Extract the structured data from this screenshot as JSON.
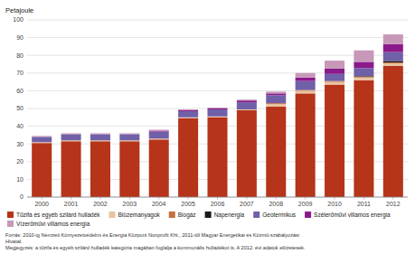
{
  "chart_data": {
    "type": "bar",
    "stacked": true,
    "grid": true,
    "legend": "bottom",
    "ylabel": "Petajoule",
    "categories": [
      "2000",
      "2001",
      "2002",
      "2003",
      "2004",
      "2005",
      "2006",
      "2007",
      "2008",
      "2009",
      "2010",
      "2011",
      "2012"
    ],
    "series": [
      {
        "name": "Tűzifa és egyéb szilárd hulladék",
        "color": "#b5341a",
        "values": [
          30.5,
          31.5,
          31.5,
          31.5,
          32.5,
          44.5,
          45.0,
          49.0,
          51.0,
          58.5,
          63.5,
          66.0,
          74.0
        ]
      },
      {
        "name": "Biüzemanyagok",
        "color": "#e8c4a0",
        "values": [
          0.5,
          0.5,
          0.5,
          0.5,
          0.5,
          0.5,
          0.5,
          0.5,
          1.5,
          1.5,
          1.5,
          1.5,
          1.5
        ]
      },
      {
        "name": "Biogáz",
        "color": "#c87040",
        "values": [
          0.0,
          0.0,
          0.0,
          0.0,
          0.0,
          0.0,
          0.0,
          0.0,
          0.5,
          0.5,
          0.5,
          0.5,
          0.5
        ]
      },
      {
        "name": "Napenergia",
        "color": "#1a1a1a",
        "values": [
          0.0,
          0.0,
          0.0,
          0.0,
          0.0,
          0.0,
          0.0,
          0.0,
          0.0,
          0.0,
          0.0,
          0.3,
          0.8
        ]
      },
      {
        "name": "Geotermikus",
        "color": "#7060a8",
        "values": [
          3.0,
          3.5,
          3.5,
          3.5,
          4.0,
          3.5,
          4.0,
          4.0,
          4.5,
          5.0,
          4.0,
          4.5,
          5.0
        ]
      },
      {
        "name": "Szélerőművi villamos energia",
        "color": "#8b1a8b",
        "values": [
          0.0,
          0.0,
          0.0,
          0.0,
          0.5,
          0.5,
          0.5,
          1.0,
          1.0,
          2.0,
          3.0,
          3.5,
          4.5
        ]
      },
      {
        "name": "Vízerőművi villamos energia",
        "color": "#c898b8",
        "values": [
          0.5,
          0.5,
          0.5,
          0.5,
          0.5,
          0.5,
          0.5,
          0.5,
          1.0,
          2.5,
          4.5,
          6.5,
          5.5
        ]
      }
    ],
    "ylim": [
      0,
      100
    ],
    "yticks": [
      0,
      10,
      20,
      30,
      40,
      50,
      60,
      70,
      80,
      90,
      100
    ],
    "annotations": [
      "Forrás: 2010-ig Nemzeti Környezetvédelmi és Energia Központ Nonprofit Kht., 2011-től Magyar Energetikai és Közmű-szabályozási",
      "Hivatal.",
      "Megjegyzés: a tűzifa és egyéb szilárd hulladék kategória magában foglalja a kommunális hulladékot is. A 2012. évi adatok előzetesek."
    ]
  }
}
